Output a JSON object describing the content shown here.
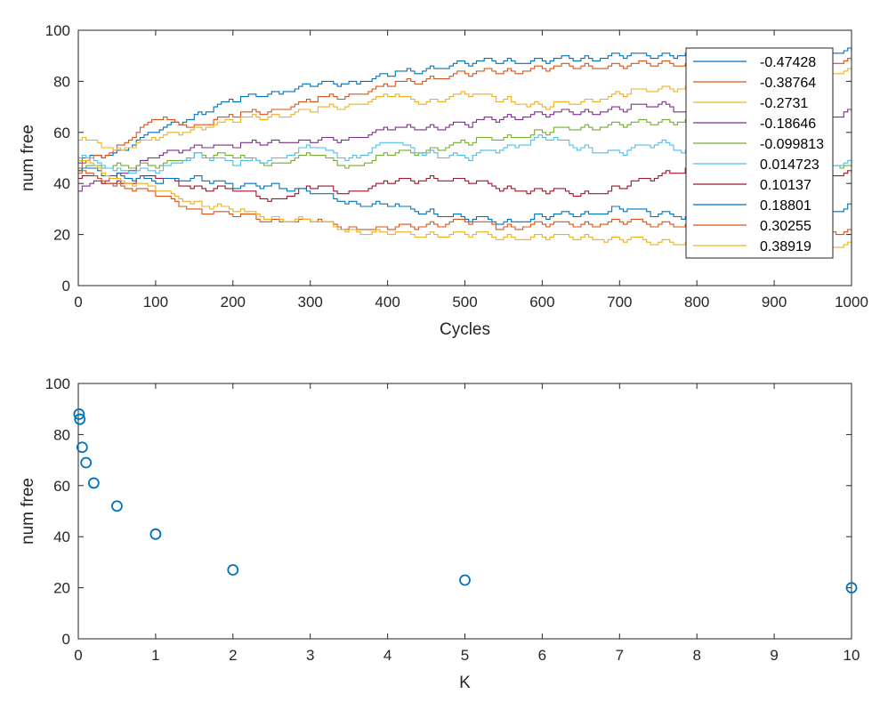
{
  "chart_data": [
    {
      "type": "line",
      "xlabel": "Cycles",
      "ylabel": "num free",
      "xlim": [
        0,
        1000
      ],
      "ylim": [
        0,
        100
      ],
      "xticks": [
        0,
        100,
        200,
        300,
        400,
        500,
        600,
        700,
        800,
        900,
        1000
      ],
      "yticks": [
        0,
        20,
        40,
        60,
        80,
        100
      ],
      "legend_position": "top-right",
      "series": [
        {
          "name": "-0.47428",
          "color": "#0072BD",
          "x": [
            0,
            50,
            100,
            150,
            200,
            250,
            300,
            350,
            400,
            450,
            500,
            550,
            600,
            650,
            700,
            750,
            800,
            850,
            900,
            950,
            1000
          ],
          "y": [
            48,
            53,
            60,
            67,
            72,
            76,
            78,
            80,
            82,
            85,
            87,
            88,
            88,
            89,
            90,
            90,
            91,
            91,
            92,
            92,
            92
          ]
        },
        {
          "name": "-0.38764",
          "color": "#D95319",
          "x": [
            0,
            50,
            100,
            150,
            200,
            250,
            300,
            350,
            400,
            450,
            500,
            550,
            600,
            650,
            700,
            750,
            800,
            850,
            900,
            950,
            1000
          ],
          "y": [
            46,
            55,
            65,
            63,
            66,
            69,
            72,
            75,
            78,
            81,
            83,
            84,
            85,
            86,
            86,
            87,
            87,
            87,
            88,
            88,
            88
          ]
        },
        {
          "name": "-0.2731",
          "color": "#EDB120",
          "x": [
            0,
            50,
            100,
            150,
            200,
            250,
            300,
            350,
            400,
            450,
            500,
            550,
            600,
            650,
            700,
            750,
            800,
            850,
            900,
            950,
            1000
          ],
          "y": [
            57,
            54,
            57,
            62,
            64,
            67,
            68,
            71,
            74,
            72,
            75,
            73,
            70,
            72,
            75,
            77,
            78,
            80,
            82,
            83,
            84
          ]
        },
        {
          "name": "-0.18646",
          "color": "#7E2F8E",
          "x": [
            0,
            50,
            100,
            150,
            200,
            250,
            300,
            350,
            400,
            450,
            500,
            550,
            600,
            650,
            700,
            750,
            800,
            850,
            900,
            950,
            1000
          ],
          "y": [
            37,
            44,
            50,
            55,
            54,
            57,
            56,
            58,
            61,
            62,
            63,
            66,
            67,
            68,
            69,
            71,
            67,
            66,
            67,
            66,
            68
          ]
        },
        {
          "name": "-0.099813",
          "color": "#77AC30",
          "x": [
            0,
            50,
            100,
            150,
            200,
            250,
            300,
            350,
            400,
            450,
            500,
            550,
            600,
            650,
            700,
            750,
            800,
            850,
            900,
            950,
            1000
          ],
          "y": [
            45,
            48,
            46,
            52,
            50,
            48,
            51,
            47,
            51,
            53,
            56,
            58,
            60,
            62,
            63,
            64,
            65,
            60,
            55,
            50,
            46
          ]
        },
        {
          "name": "0.014723",
          "color": "#4DBEEE",
          "x": [
            0,
            50,
            100,
            150,
            200,
            250,
            300,
            350,
            400,
            450,
            500,
            550,
            600,
            650,
            700,
            750,
            800,
            850,
            900,
            950,
            1000
          ],
          "y": [
            50,
            46,
            44,
            52,
            47,
            50,
            54,
            50,
            56,
            52,
            50,
            54,
            58,
            54,
            52,
            56,
            51,
            49,
            48,
            47,
            48
          ]
        },
        {
          "name": "0.10137",
          "color": "#A2142F",
          "x": [
            0,
            50,
            100,
            150,
            200,
            250,
            300,
            350,
            400,
            450,
            500,
            550,
            600,
            650,
            700,
            750,
            800,
            850,
            900,
            950,
            1000
          ],
          "y": [
            42,
            41,
            42,
            39,
            37,
            34,
            38,
            37,
            40,
            42,
            41,
            38,
            37,
            36,
            38,
            43,
            47,
            50,
            47,
            44,
            44
          ]
        },
        {
          "name": "0.18801",
          "color": "#0072BD",
          "x": [
            0,
            50,
            100,
            150,
            200,
            250,
            300,
            350,
            400,
            450,
            500,
            550,
            600,
            650,
            700,
            750,
            800,
            850,
            900,
            950,
            1000
          ],
          "y": [
            45,
            44,
            40,
            43,
            38,
            40,
            36,
            33,
            31,
            29,
            26,
            25,
            27,
            28,
            30,
            28,
            27,
            26,
            27,
            28,
            31
          ]
        },
        {
          "name": "0.30255",
          "color": "#D95319",
          "x": [
            0,
            50,
            100,
            150,
            200,
            250,
            300,
            350,
            400,
            450,
            500,
            550,
            600,
            650,
            700,
            750,
            800,
            850,
            900,
            950,
            1000
          ],
          "y": [
            44,
            40,
            35,
            30,
            27,
            26,
            25,
            23,
            22,
            24,
            25,
            23,
            24,
            24,
            25,
            24,
            24,
            25,
            24,
            22,
            21
          ]
        },
        {
          "name": "0.38919",
          "color": "#EDB120",
          "x": [
            0,
            50,
            100,
            150,
            200,
            250,
            300,
            350,
            400,
            450,
            500,
            550,
            600,
            650,
            700,
            750,
            800,
            850,
            900,
            950,
            1000
          ],
          "y": [
            49,
            42,
            37,
            33,
            29,
            27,
            25,
            22,
            20,
            20,
            20,
            19,
            19,
            19,
            18,
            17,
            17,
            17,
            16,
            16,
            16
          ]
        }
      ]
    },
    {
      "type": "scatter",
      "xlabel": "K",
      "ylabel": "num free",
      "xlim": [
        0,
        10
      ],
      "ylim": [
        0,
        100
      ],
      "xticks": [
        0,
        1,
        2,
        3,
        4,
        5,
        6,
        7,
        8,
        9,
        10
      ],
      "yticks": [
        0,
        20,
        40,
        60,
        80,
        100
      ],
      "marker": "circle",
      "color": "#0072BD",
      "x": [
        0.01,
        0.02,
        0.05,
        0.1,
        0.2,
        0.5,
        1,
        2,
        5,
        10
      ],
      "y": [
        88,
        86,
        75,
        69,
        61,
        52,
        41,
        27,
        23,
        20
      ]
    }
  ]
}
